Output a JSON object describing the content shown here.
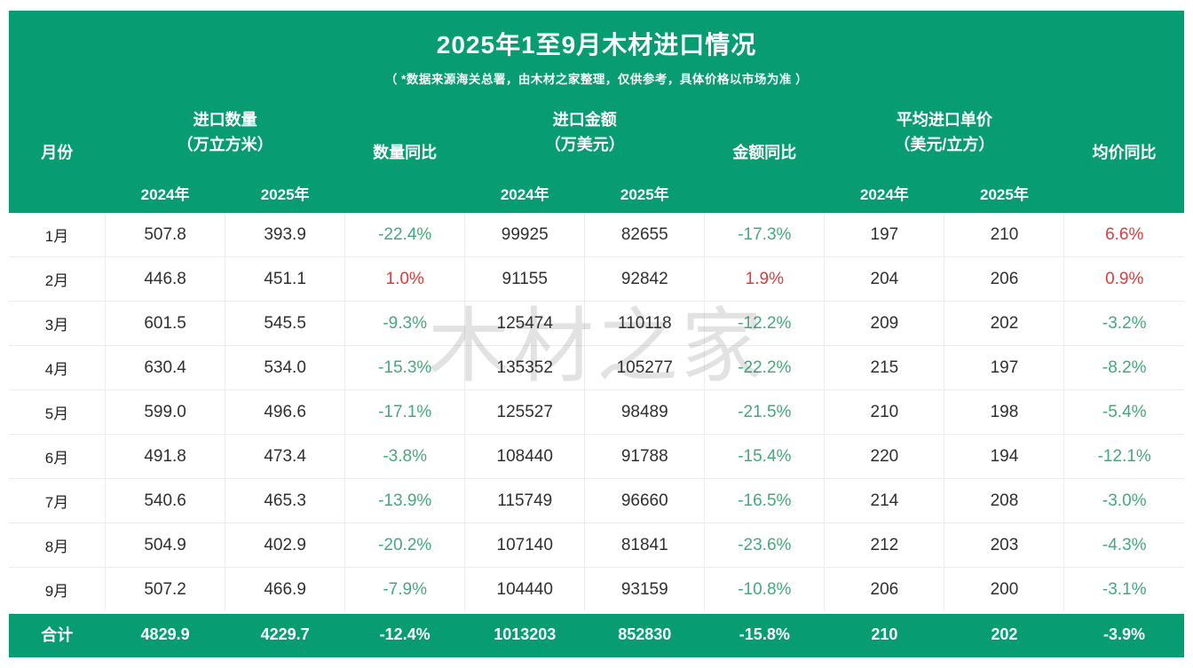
{
  "header": {
    "title": "2025年1至9月木材进口情况",
    "subtitle": "（ *数据来源海关总署，由木材之家整理，仅供参考，具体价格以市场为准 ）"
  },
  "columns": {
    "month": "月份",
    "quantity_group_line1": "进口数量",
    "quantity_group_line2": "（万立方米）",
    "quantity_yoy": "数量同比",
    "amount_group_line1": "进口金额",
    "amount_group_line2": "（万美元）",
    "amount_yoy": "金额同比",
    "price_group_line1": "平均进口单价",
    "price_group_line2": "（美元/立方）",
    "price_yoy": "均价同比",
    "year_2024": "2024年",
    "year_2025": "2025年"
  },
  "watermark": {
    "text": "木材之家"
  },
  "colors": {
    "panel_green": "#079c72",
    "decrease_green": "#45a87a",
    "increase_red": "#de3b3c"
  },
  "chart_data": {
    "type": "table",
    "title": "2025年1至9月木材进口情况",
    "columns": [
      "月份",
      "进口数量（万立方米）2024年",
      "进口数量（万立方米）2025年",
      "数量同比",
      "进口金额（万美元）2024年",
      "进口金额（万美元）2025年",
      "金额同比",
      "平均进口单价（美元/立方）2024年",
      "平均进口单价（美元/立方）2025年",
      "均价同比"
    ],
    "rows": [
      {
        "month": "1月",
        "q2024": "507.8",
        "q2025": "393.9",
        "q_yoy": "-22.4%",
        "a2024": "99925",
        "a2025": "82655",
        "a_yoy": "-17.3%",
        "p2024": "197",
        "p2025": "210",
        "p_yoy": "6.6%"
      },
      {
        "month": "2月",
        "q2024": "446.8",
        "q2025": "451.1",
        "q_yoy": "1.0%",
        "a2024": "91155",
        "a2025": "92842",
        "a_yoy": "1.9%",
        "p2024": "204",
        "p2025": "206",
        "p_yoy": "0.9%"
      },
      {
        "month": "3月",
        "q2024": "601.5",
        "q2025": "545.5",
        "q_yoy": "-9.3%",
        "a2024": "125474",
        "a2025": "110118",
        "a_yoy": "-12.2%",
        "p2024": "209",
        "p2025": "202",
        "p_yoy": "-3.2%"
      },
      {
        "month": "4月",
        "q2024": "630.4",
        "q2025": "534.0",
        "q_yoy": "-15.3%",
        "a2024": "135352",
        "a2025": "105277",
        "a_yoy": "-22.2%",
        "p2024": "215",
        "p2025": "197",
        "p_yoy": "-8.2%"
      },
      {
        "month": "5月",
        "q2024": "599.0",
        "q2025": "496.6",
        "q_yoy": "-17.1%",
        "a2024": "125527",
        "a2025": "98489",
        "a_yoy": "-21.5%",
        "p2024": "210",
        "p2025": "198",
        "p_yoy": "-5.4%"
      },
      {
        "month": "6月",
        "q2024": "491.8",
        "q2025": "473.4",
        "q_yoy": "-3.8%",
        "a2024": "108440",
        "a2025": "91788",
        "a_yoy": "-15.4%",
        "p2024": "220",
        "p2025": "194",
        "p_yoy": "-12.1%"
      },
      {
        "month": "7月",
        "q2024": "540.6",
        "q2025": "465.3",
        "q_yoy": "-13.9%",
        "a2024": "115749",
        "a2025": "96660",
        "a_yoy": "-16.5%",
        "p2024": "214",
        "p2025": "208",
        "p_yoy": "-3.0%"
      },
      {
        "month": "8月",
        "q2024": "504.9",
        "q2025": "402.9",
        "q_yoy": "-20.2%",
        "a2024": "107140",
        "a2025": "81841",
        "a_yoy": "-23.6%",
        "p2024": "212",
        "p2025": "203",
        "p_yoy": "-4.3%"
      },
      {
        "month": "9月",
        "q2024": "507.2",
        "q2025": "466.9",
        "q_yoy": "-7.9%",
        "a2024": "104440",
        "a2025": "93159",
        "a_yoy": "-10.8%",
        "p2024": "206",
        "p2025": "200",
        "p_yoy": "-3.1%"
      }
    ],
    "total": {
      "month": "合计",
      "q2024": "4829.9",
      "q2025": "4229.7",
      "q_yoy": "-12.4%",
      "a2024": "1013203",
      "a2025": "852830",
      "a_yoy": "-15.8%",
      "p2024": "210",
      "p2025": "202",
      "p_yoy": "-3.9%"
    }
  }
}
